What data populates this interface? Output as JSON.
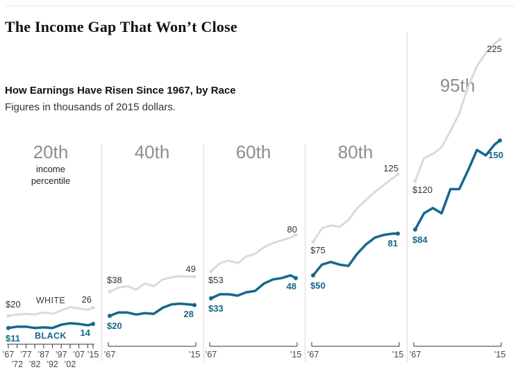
{
  "page": {
    "title": "The Income Gap That Won’t Close",
    "subtitle": "How Earnings Have Risen Since 1967, by Race",
    "note": "Figures in thousands of 2015 dollars."
  },
  "chart_data": {
    "type": "line",
    "title": "The Income Gap That Won’t Close",
    "subtitle": "How Earnings Have Risen Since 1967, by Race",
    "units": "thousands of 2015 dollars",
    "x": [
      1967,
      1972,
      1977,
      1982,
      1987,
      1992,
      1997,
      2002,
      2007,
      2012,
      2015
    ],
    "xlim": [
      1967,
      2015
    ],
    "ylim": [
      0,
      235
    ],
    "grid": false,
    "legend_position": "first-panel-inline",
    "colors": {
      "white_series": "#d7dbe0",
      "black_series": "#15678c",
      "panel_header": "#8e8e8e",
      "divider": "#d9d9d9",
      "axis": "#333333",
      "dark_label": "#333333"
    },
    "panels": [
      {
        "header": "20th",
        "subheader_line1": "income",
        "subheader_line2": "percentile",
        "white": {
          "name": "WHITE",
          "start_label": "$20",
          "end_label": "26",
          "values": [
            20,
            21,
            21.5,
            21,
            22.5,
            21.5,
            24,
            26.5,
            25.5,
            24.5,
            26
          ]
        },
        "black": {
          "name": "BLACK",
          "start_label": "$11",
          "end_label": "14",
          "values": [
            11,
            12,
            12,
            11,
            11.5,
            11,
            13.5,
            14.5,
            14,
            13,
            14
          ]
        },
        "x_tick_labels_row1": [
          "’67",
          "’77",
          "’87",
          "’97",
          "’07",
          "’15"
        ],
        "x_tick_labels_row2": [
          "’72",
          "’82",
          "’92",
          "’02"
        ]
      },
      {
        "header": "40th",
        "white": {
          "name": "WHITE",
          "start_label": "$38",
          "end_label": "49",
          "values": [
            38,
            41,
            42,
            39.5,
            44,
            42,
            47,
            48.5,
            49.5,
            49,
            49
          ]
        },
        "black": {
          "name": "BLACK",
          "start_label": "$20",
          "end_label": "28",
          "values": [
            20,
            22.5,
            22.5,
            21,
            22,
            21.5,
            26,
            28.5,
            29,
            28.5,
            28
          ]
        },
        "x_tick_labels_row1": [
          "’67",
          "’15"
        ]
      },
      {
        "header": "60th",
        "white": {
          "name": "WHITE",
          "start_label": "$53",
          "end_label": "80",
          "values": [
            53,
            59,
            61,
            59,
            64,
            66,
            71,
            74,
            76,
            78,
            80
          ]
        },
        "black": {
          "name": "BLACK",
          "start_label": "$33",
          "end_label": "48",
          "values": [
            33,
            36,
            36,
            35,
            37.5,
            38.5,
            44,
            47,
            48,
            50,
            48
          ]
        },
        "x_tick_labels_row1": [
          "’67",
          "’15"
        ]
      },
      {
        "header": "80th",
        "white": {
          "name": "WHITE",
          "start_label": "$75",
          "end_label": "125",
          "values": [
            75,
            85,
            87,
            86,
            91,
            100,
            106,
            112,
            117,
            122,
            125
          ]
        },
        "black": {
          "name": "BLACK",
          "start_label": "$50",
          "end_label": "81",
          "values": [
            50,
            58,
            60,
            58,
            57,
            66,
            73,
            78,
            80,
            81,
            81
          ]
        },
        "x_tick_labels_row1": [
          "’67",
          "’15"
        ]
      },
      {
        "header": "95th",
        "white": {
          "name": "WHITE",
          "start_label": "$120",
          "end_label": "225",
          "values": [
            120,
            137,
            140,
            145,
            157,
            170,
            190,
            205,
            215,
            222,
            225
          ]
        },
        "black": {
          "name": "BLACK",
          "start_label": "$84",
          "end_label": "150",
          "values": [
            84,
            96,
            100,
            96,
            114,
            114,
            128,
            143,
            139,
            147,
            150
          ]
        },
        "x_tick_labels_row1": [
          "’67",
          "’15"
        ]
      }
    ]
  }
}
